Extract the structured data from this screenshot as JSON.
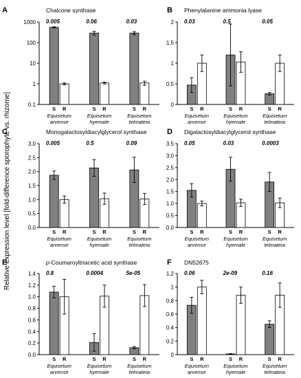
{
  "figure": {
    "ylabel": "Relative expression level [fold-difference sporophyte vs. rhizome]"
  },
  "colors": {
    "sporophyte": "#808080",
    "rhizome": "#ffffff",
    "outline": "#000000"
  },
  "chart_data": [
    {
      "letter": "A",
      "type": "bar",
      "title": "Chalcone synthase",
      "title_html": "Chalcone synthase",
      "scale": "log",
      "ylim": [
        0.1,
        1000
      ],
      "yticks": [
        0.1,
        1,
        10,
        100,
        1000
      ],
      "yticklabels": [
        "0.1",
        "1",
        "10",
        "100",
        "1000"
      ],
      "categories": [
        [
          "Equisetum",
          "arvense"
        ],
        [
          "Equisetum",
          "hyemale"
        ],
        [
          "Equisetum",
          "telmateia"
        ]
      ],
      "group_labels": [
        "S",
        "R"
      ],
      "pvalues": [
        "0.005",
        "0.06",
        "0.03"
      ],
      "series": [
        {
          "name": "S",
          "values": [
            550,
            290,
            290
          ],
          "errors": [
            40,
            60,
            50
          ]
        },
        {
          "name": "R",
          "values": [
            1.0,
            1.1,
            1.1
          ],
          "errors": [
            0.1,
            0.12,
            0.25
          ]
        }
      ]
    },
    {
      "letter": "B",
      "type": "bar",
      "title": "Phenylalanine ammonia lyase",
      "title_html": "Phenylalanine ammonia lyase",
      "scale": "linear",
      "ylim": [
        0,
        2.0
      ],
      "yticks": [
        0,
        0.5,
        1.0,
        1.5,
        2.0
      ],
      "yticklabels": [
        "0",
        "0.5",
        "1",
        "1.5",
        "2"
      ],
      "categories": [
        [
          "Equisetum",
          "arvense"
        ],
        [
          "Equisetum",
          "hyemale"
        ],
        [
          "Equisetum",
          "telmateia"
        ]
      ],
      "group_labels": [
        "S",
        "R"
      ],
      "pvalues": [
        "0.03",
        "0.5",
        "0.05"
      ],
      "series": [
        {
          "name": "S",
          "values": [
            0.47,
            1.2,
            0.26
          ],
          "errors": [
            0.18,
            0.75,
            0.03
          ]
        },
        {
          "name": "R",
          "values": [
            1.0,
            1.03,
            1.0
          ],
          "errors": [
            0.2,
            0.25,
            0.2
          ]
        }
      ]
    },
    {
      "letter": "C",
      "type": "bar",
      "title": "Monogalactosyldiacylglycerol synthase",
      "title_html": "Monogalactosyldiacylglycerol synthase",
      "scale": "linear",
      "ylim": [
        0,
        3.0
      ],
      "yticks": [
        0,
        0.5,
        1.0,
        1.5,
        2.0,
        2.5,
        3.0
      ],
      "yticklabels": [
        "0.0",
        "0.5",
        "1.0",
        "1.5",
        "2.0",
        "2.5",
        "3.0"
      ],
      "categories": [
        [
          "Equisetum",
          "arvense"
        ],
        [
          "Equisetum",
          "hyemale"
        ],
        [
          "Equisetum",
          "telmateia"
        ]
      ],
      "group_labels": [
        "S",
        "R"
      ],
      "pvalues": [
        "0.005",
        "0.5",
        "0.09"
      ],
      "series": [
        {
          "name": "S",
          "values": [
            1.87,
            2.13,
            2.06
          ],
          "errors": [
            0.15,
            0.3,
            0.45
          ]
        },
        {
          "name": "R",
          "values": [
            1.0,
            1.03,
            1.02
          ],
          "errors": [
            0.13,
            0.2,
            0.2
          ]
        }
      ]
    },
    {
      "letter": "D",
      "type": "bar",
      "title": "Digalactosyldiacylglycerol  synthase",
      "title_html": "Digalactosyldiacylglycerol  synthase",
      "scale": "linear",
      "ylim": [
        0,
        3.5
      ],
      "yticks": [
        0,
        0.5,
        1.0,
        1.5,
        2.0,
        2.5,
        3.0,
        3.5
      ],
      "yticklabels": [
        "0.0",
        "0.5",
        "1.0",
        "1.5",
        "2.0",
        "2.5",
        "3.0",
        "3.5"
      ],
      "categories": [
        [
          "Equisetum",
          "arvense"
        ],
        [
          "Equisetum",
          "hyemale"
        ],
        [
          "Equisetum",
          "telmateia"
        ]
      ],
      "group_labels": [
        "S",
        "R"
      ],
      "pvalues": [
        "0.05",
        "0.03",
        "0.0003"
      ],
      "series": [
        {
          "name": "S",
          "values": [
            1.55,
            2.43,
            1.9
          ],
          "errors": [
            0.28,
            0.5,
            0.4
          ]
        },
        {
          "name": "R",
          "values": [
            1.0,
            1.03,
            1.03
          ],
          "errors": [
            0.1,
            0.15,
            0.2
          ]
        }
      ]
    },
    {
      "letter": "E",
      "type": "bar",
      "title": "p-Coumaroyltriacetic acid synthase",
      "title_html": "<tspan font-style=\"italic\">p</tspan>-Coumaroyltriacetic acid synthase",
      "scale": "linear",
      "ylim": [
        0,
        1.4
      ],
      "yticks": [
        0,
        0.2,
        0.4,
        0.6,
        0.8,
        1.0,
        1.2,
        1.4
      ],
      "yticklabels": [
        "0.0",
        "0.2",
        "0.4",
        "0.6",
        "0.8",
        "1.0",
        "1.2",
        "1.4"
      ],
      "categories": [
        [
          "Equisetum",
          "arvense"
        ],
        [
          "Equisetum",
          "hyemale"
        ],
        [
          "Equisetum",
          "telmateia"
        ]
      ],
      "group_labels": [
        "S",
        "R"
      ],
      "pvalues": [
        "0.8",
        "0.0004",
        "5e-05"
      ],
      "series": [
        {
          "name": "S",
          "values": [
            1.08,
            0.21,
            0.12
          ],
          "errors": [
            0.1,
            0.15,
            0.02
          ]
        },
        {
          "name": "R",
          "values": [
            1.0,
            1.01,
            1.02
          ],
          "errors": [
            0.3,
            0.19,
            0.19
          ]
        }
      ]
    },
    {
      "letter": "F",
      "type": "bar",
      "title": "DN52675",
      "title_html": "DN52675",
      "scale": "linear",
      "ylim": [
        0,
        1.2
      ],
      "yticks": [
        0,
        0.2,
        0.4,
        0.6,
        0.8,
        1.0,
        1.2
      ],
      "yticklabels": [
        "0",
        "0.2",
        "0.4",
        "0.6",
        "0.8",
        "1",
        "1.2"
      ],
      "categories": [
        [
          "Equisetum",
          "arvense"
        ],
        [
          "Equisetum",
          "hyemale"
        ],
        [
          "Equisetum",
          "telmateia"
        ]
      ],
      "group_labels": [
        "S",
        "R"
      ],
      "pvalues": [
        "0.06",
        "2e-09",
        "0.16"
      ],
      "series": [
        {
          "name": "S",
          "values": [
            0.73,
            0.01,
            0.45
          ],
          "errors": [
            0.12,
            0.005,
            0.05
          ]
        },
        {
          "name": "R",
          "values": [
            1.0,
            0.88,
            0.88
          ],
          "errors": [
            0.1,
            0.12,
            0.18
          ]
        }
      ]
    }
  ]
}
